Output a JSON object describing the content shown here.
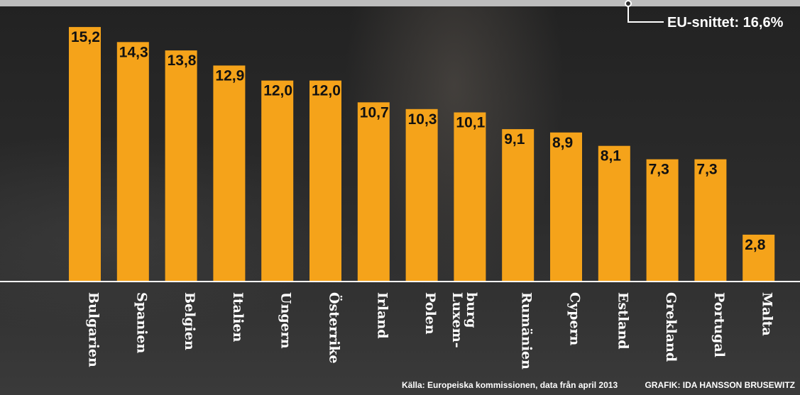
{
  "chart_data": {
    "type": "bar",
    "categories": [
      "Bulgarien",
      "Spanien",
      "Belgien",
      "Italien",
      "Ungern",
      "Österrike",
      "Irland",
      "Polen",
      "Luxem-\nburg",
      "Rumänien",
      "Cypern",
      "Estland",
      "Grekland",
      "Portugal",
      "Malta"
    ],
    "values": [
      15.2,
      14.3,
      13.8,
      12.9,
      12.0,
      12.0,
      10.7,
      10.3,
      10.1,
      9.1,
      8.9,
      8.1,
      7.3,
      7.3,
      2.8
    ],
    "value_labels": [
      "15,2",
      "14,3",
      "13,8",
      "12,9",
      "12,0",
      "12,0",
      "10,7",
      "10,3",
      "10,1",
      "9,1",
      "8,9",
      "8,1",
      "7,3",
      "7,3",
      "2,8"
    ],
    "reference_line": {
      "value": 16.6,
      "label": "EU-snittet: 16,6%"
    },
    "ylim": [
      0,
      16.6
    ],
    "grid": false,
    "bar_color": "#f5a31a",
    "source": "Källa: Europeiska kommissionen, data från april 2013",
    "credit": "GRAFIK: IDA HANSSON BRUSEWITZ"
  }
}
